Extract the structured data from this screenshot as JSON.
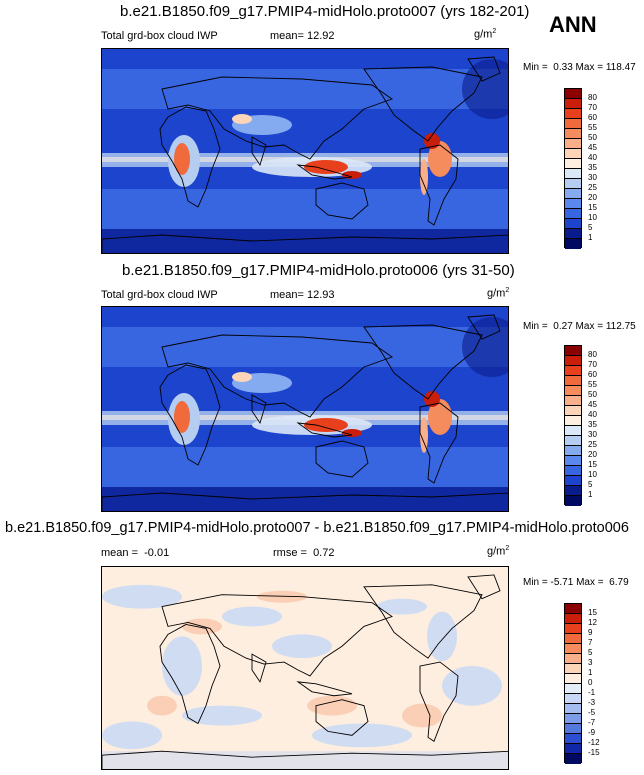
{
  "season": "ANN",
  "panels": [
    {
      "title": "b.e21.B1850.f09_g17.PMIP4-midHolo.proto007 (yrs 182-201)",
      "left_label": "Total grd-box cloud IWP",
      "mean_label": "mean=",
      "mean_value": "12.92",
      "units": "g/m",
      "units_sup": "2",
      "min_label": "Min =",
      "min_value": "0.33",
      "max_label": "Max =",
      "max_value": "118.47",
      "levels": [
        "80",
        "70",
        "60",
        "55",
        "50",
        "45",
        "40",
        "35",
        "30",
        "25",
        "20",
        "15",
        "10",
        "5",
        "1"
      ]
    },
    {
      "title": "b.e21.B1850.f09_g17.PMIP4-midHolo.proto006 (yrs 31-50)",
      "left_label": "Total grd-box cloud IWP",
      "mean_label": "mean=",
      "mean_value": "12.93",
      "units": "g/m",
      "units_sup": "2",
      "min_label": "Min =",
      "min_value": "0.27",
      "max_label": "Max =",
      "max_value": "112.75",
      "levels": [
        "80",
        "70",
        "60",
        "55",
        "50",
        "45",
        "40",
        "35",
        "30",
        "25",
        "20",
        "15",
        "10",
        "5",
        "1"
      ]
    },
    {
      "title": "b.e21.B1850.f09_g17.PMIP4-midHolo.proto007 - b.e21.B1850.f09_g17.PMIP4-midHolo.proto006",
      "left_label": "mean =",
      "mean_value": "-0.01",
      "rmse_label": "rmse =",
      "rmse_value": "0.72",
      "units": "g/m",
      "units_sup": "2",
      "min_label": "Min =",
      "min_value": "-5.71",
      "max_label": "Max =",
      "max_value": "6.79",
      "levels": [
        "15",
        "12",
        "9",
        "7",
        "5",
        "3",
        "1",
        "0",
        "-1",
        "-3",
        "-5",
        "-7",
        "-9",
        "-12",
        "-15"
      ]
    }
  ],
  "colors": {
    "abs_scale": [
      "#8b0000",
      "#c81e0a",
      "#e8401c",
      "#f06a3c",
      "#f58c5e",
      "#f9b08a",
      "#fcd4b8",
      "#fdf0e0",
      "#dbe8f7",
      "#b4cdf0",
      "#84aaf0",
      "#5a88ec",
      "#3866e0",
      "#1c44cc",
      "#0a1c8c",
      "#000a60"
    ],
    "diff_scale": [
      "#8b0000",
      "#c81e0a",
      "#e8401c",
      "#f06a3c",
      "#f58c5e",
      "#f9b08a",
      "#fcd4b8",
      "#fdeee0",
      "#e4ecf8",
      "#c8d8f4",
      "#a4bcf0",
      "#7c9ce8",
      "#5478dc",
      "#2c4ed0",
      "#1028a8",
      "#000a60"
    ]
  }
}
